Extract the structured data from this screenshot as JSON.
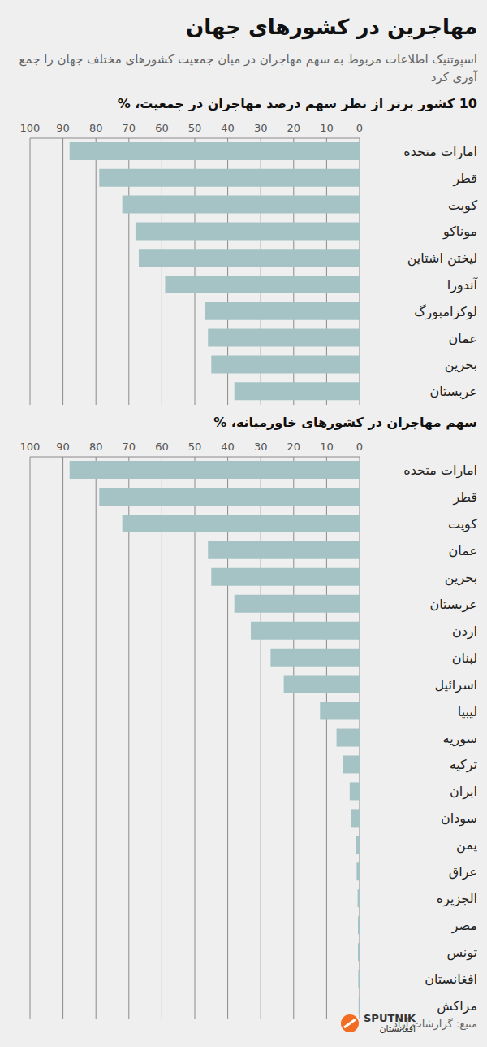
{
  "title": "مهاجرین در کشورهای جهان",
  "subtitle": "اسپوتنیک اطلاعات مربوط به سهم مهاجران در میان جمعیت کشورهای مختلف جهان را جمع آوری کرد",
  "source": "منبع: گزارشات آزاد",
  "brand": {
    "name": "SPUTNIK",
    "region": "افغانستان"
  },
  "chart_data": [
    {
      "type": "bar",
      "orientation": "horizontal",
      "title": "10 کشور برتر از نظر سهم درصد مهاجران در جمعیت، %",
      "categories": [
        "امارات متحده",
        "قطر",
        "کویت",
        "موناکو",
        "لیختن اشتاین",
        "آندورا",
        "لوکزامبورگ",
        "عمان",
        "بحرین",
        "عربستان"
      ],
      "values": [
        88,
        79,
        72,
        68,
        67,
        59,
        47,
        46,
        45,
        38
      ],
      "color": "#a5c3c5",
      "xlim": [
        0,
        100
      ],
      "xticks": [
        0,
        10,
        20,
        30,
        40,
        50,
        60,
        70,
        80,
        90,
        100
      ],
      "grid": true
    },
    {
      "type": "bar",
      "orientation": "horizontal",
      "title": "سهم مهاجران در کشورهای خاورمیانه، %",
      "categories": [
        "امارات متحده",
        "قطر",
        "کویت",
        "عمان",
        "بحرین",
        "عربستان",
        "اردن",
        "لبنان",
        "اسرائیل",
        "لیبیا",
        "سوریه",
        "ترکیه",
        "ایران",
        "سودان",
        "یمن",
        "عراق",
        "الجزیره",
        "مصر",
        "تونس",
        "افغانستان",
        "مراکش"
      ],
      "values": [
        88,
        79,
        72,
        46,
        45,
        38,
        33,
        27,
        23,
        12,
        7,
        5,
        3,
        2.7,
        1.2,
        0.9,
        0.6,
        0.5,
        0.5,
        0.4,
        0.3
      ],
      "color": "#a5c3c5",
      "xlim": [
        0,
        100
      ],
      "xticks": [
        0,
        10,
        20,
        30,
        40,
        50,
        60,
        70,
        80,
        90,
        100
      ],
      "grid": true
    }
  ]
}
